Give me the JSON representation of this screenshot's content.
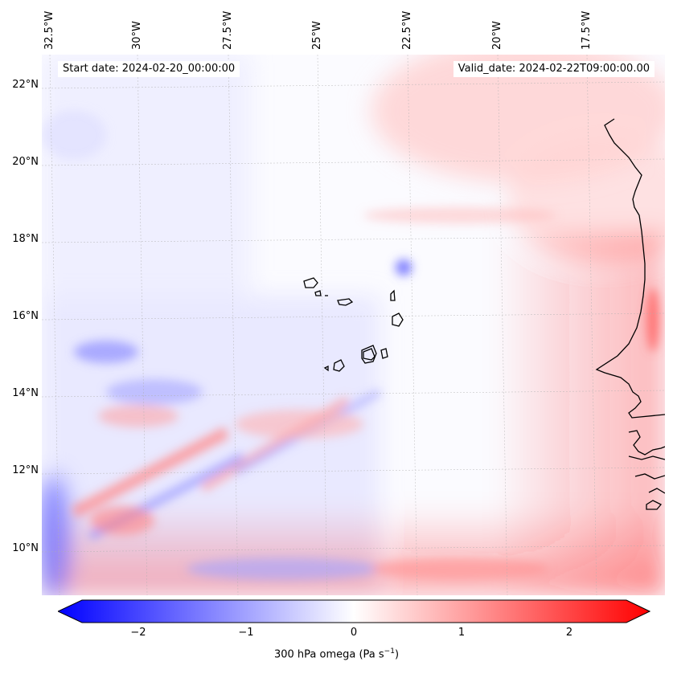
{
  "header": {
    "start_date": "Start date: 2024-02-20_00:00:00",
    "valid_date": "Valid_date: 2024-02-22T09:00:00.00"
  },
  "longitude_labels": [
    "32.5°W",
    "30°W",
    "27.5°W",
    "25°W",
    "22.5°W",
    "20°W",
    "17.5°W"
  ],
  "latitude_labels": [
    "22°N",
    "20°N",
    "18°N",
    "16°N",
    "14°N",
    "12°N",
    "10°N"
  ],
  "colorbar": {
    "label_prefix": "300 hPa omega (Pa s",
    "label_exp": "−1",
    "label_suffix": ")",
    "ticks": [
      "−2",
      "−1",
      "0",
      "1",
      "2"
    ],
    "range": [
      -2.5,
      2.5
    ],
    "colors": {
      "negative": "#0000ff",
      "zero": "#ffffff",
      "positive": "#ff0000"
    }
  },
  "map": {
    "domain": {
      "lon_min": -32.8,
      "lon_max": -15.9,
      "lat_min": 8.9,
      "lat_max": 22.8
    },
    "gridlines": true,
    "coastline_color": "#000000"
  }
}
